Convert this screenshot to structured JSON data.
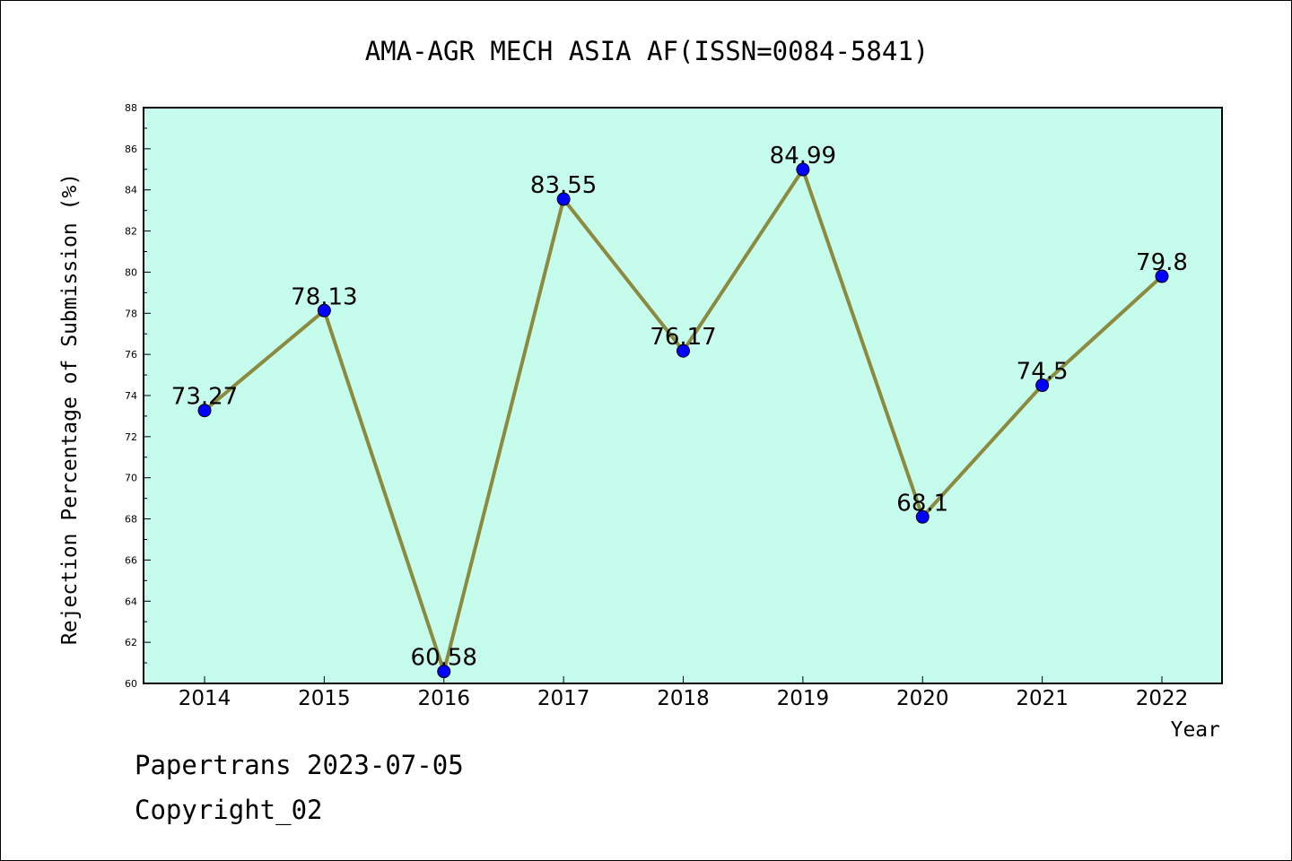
{
  "chart_data": {
    "type": "line",
    "title": "AMA-AGR MECH ASIA AF(ISSN=0084-5841)",
    "xlabel": "Year",
    "ylabel": "Rejection Percentage of Submission (%)",
    "categories": [
      "2014",
      "2015",
      "2016",
      "2017",
      "2018",
      "2019",
      "2020",
      "2021",
      "2022"
    ],
    "values": [
      73.27,
      78.13,
      60.58,
      83.55,
      76.17,
      84.99,
      68.1,
      74.5,
      79.8
    ],
    "value_labels": [
      "73.27",
      "78.13",
      "60.58",
      "83.55",
      "76.17",
      "84.99",
      "68.1",
      "74.5",
      "79.8"
    ],
    "ylim": [
      60,
      88
    ],
    "yticks": [
      "60",
      "62",
      "64",
      "66",
      "68",
      "70",
      "72",
      "74",
      "76",
      "78",
      "80",
      "82",
      "84",
      "86",
      "88"
    ],
    "grid": false,
    "legend": "none",
    "colors": {
      "plot_background": "#c6fcec",
      "line": "#8b8a3e",
      "marker": "#0000ff"
    }
  },
  "footer": {
    "line1": "Papertrans 2023-07-05",
    "line2": "Copyright_02"
  }
}
